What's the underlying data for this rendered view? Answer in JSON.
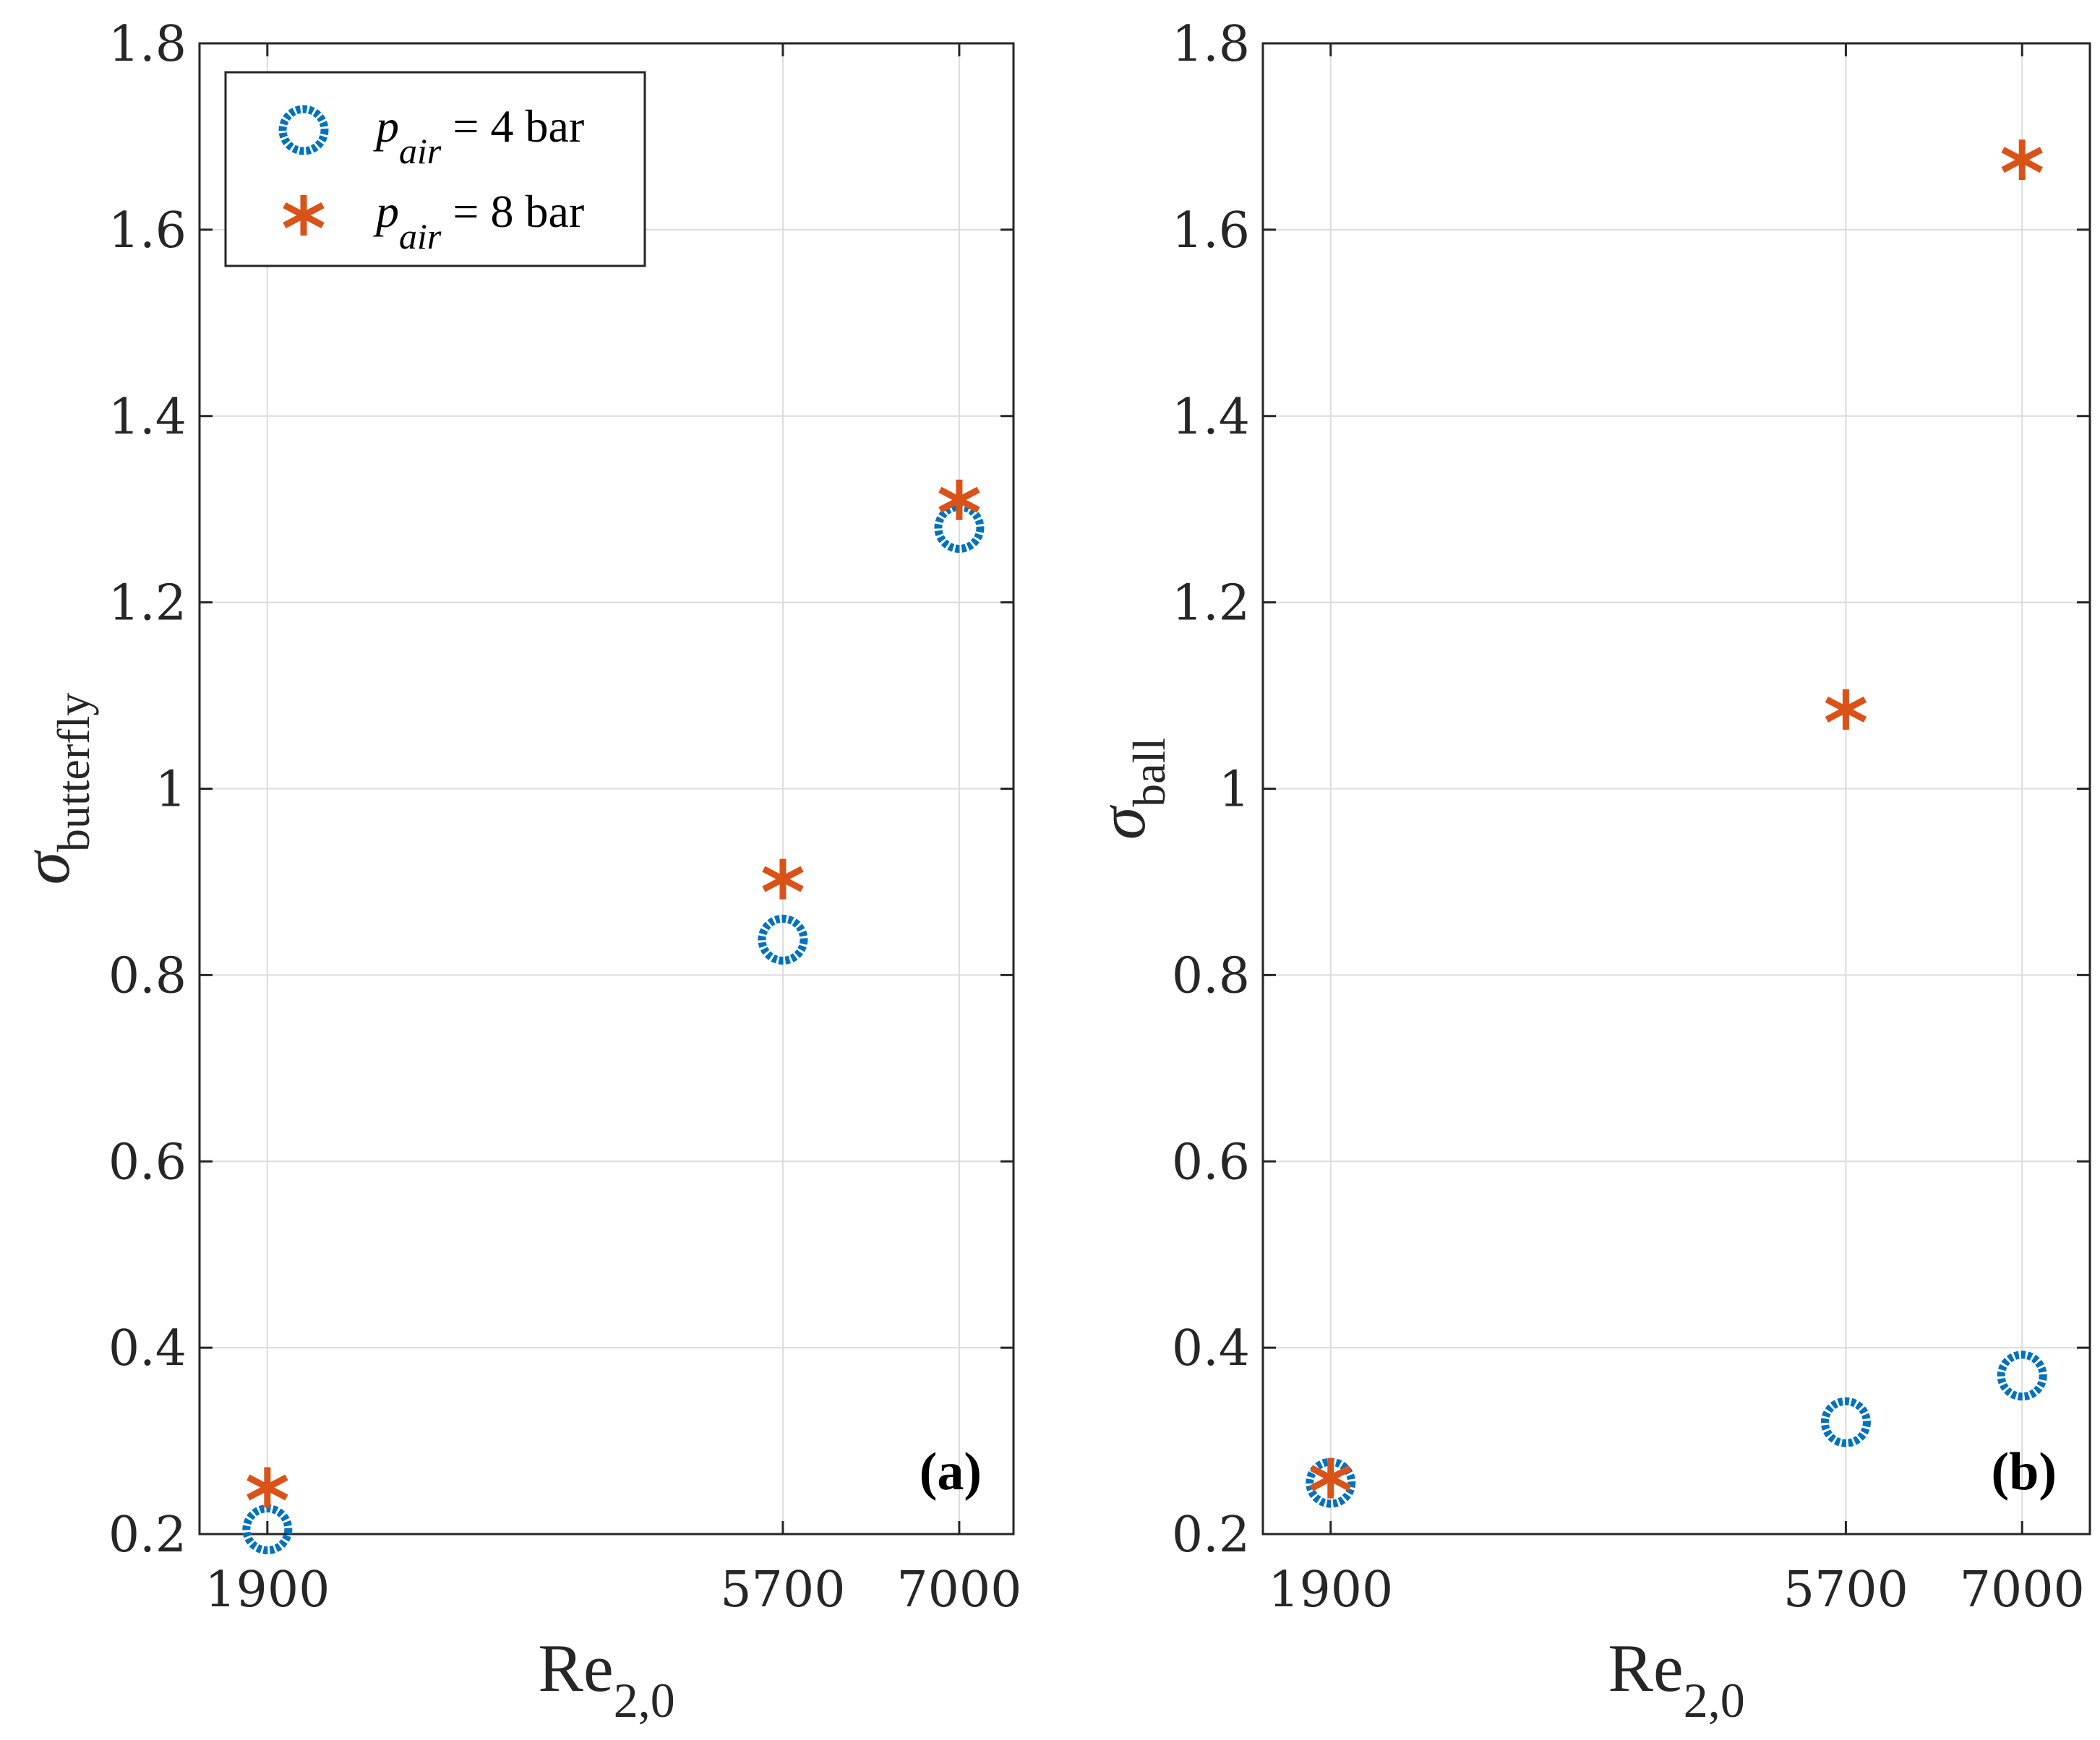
{
  "colors": {
    "series_4bar": "#0072BD",
    "series_8bar": "#D95319",
    "axes": "#262626",
    "grid": "#dcdcdc"
  },
  "legend": {
    "items": [
      {
        "symbol": "p",
        "subscript": "air",
        "suffix": " = 4 bar",
        "marker": "circle"
      },
      {
        "symbol": "p",
        "subscript": "air",
        "suffix": " = 8 bar",
        "marker": "asterisk"
      }
    ]
  },
  "chart_data": [
    {
      "type": "scatter",
      "panel_label": "(a)",
      "xlabel": {
        "main": "Re",
        "sub": "2,0"
      },
      "ylabel": {
        "main": "σ",
        "sub": "butterfly"
      },
      "xlim": [
        1400,
        7400
      ],
      "ylim": [
        0.2,
        1.8
      ],
      "xticks": [
        1900,
        5700,
        7000
      ],
      "yticks": [
        0.2,
        0.4,
        0.6,
        0.8,
        1,
        1.2,
        1.4,
        1.6,
        1.8
      ],
      "ytick_labels": [
        "0.2",
        "0.4",
        "0.6",
        "0.8",
        "1",
        "1.2",
        "1.4",
        "1.6",
        "1.8"
      ],
      "grid": true,
      "series": [
        {
          "name": "p_air = 4 bar",
          "marker": "circle",
          "x": [
            1900,
            5700,
            7000
          ],
          "y": [
            0.205,
            0.838,
            1.28
          ]
        },
        {
          "name": "p_air = 8 bar",
          "marker": "asterisk",
          "x": [
            1900,
            5700,
            7000
          ],
          "y": [
            0.25,
            0.903,
            1.31
          ]
        }
      ]
    },
    {
      "type": "scatter",
      "panel_label": "(b)",
      "xlabel": {
        "main": "Re",
        "sub": "2,0"
      },
      "ylabel": {
        "main": "σ",
        "sub": "ball"
      },
      "xlim": [
        1400,
        7500
      ],
      "ylim": [
        0.2,
        1.8
      ],
      "xticks": [
        1900,
        5700,
        7000
      ],
      "yticks": [
        0.2,
        0.4,
        0.6,
        0.8,
        1,
        1.2,
        1.4,
        1.6,
        1.8
      ],
      "ytick_labels": [
        "0.2",
        "0.4",
        "0.6",
        "0.8",
        "1",
        "1.2",
        "1.4",
        "1.6",
        "1.8"
      ],
      "grid": true,
      "series": [
        {
          "name": "p_air = 4 bar",
          "marker": "circle",
          "x": [
            1900,
            5700,
            7000
          ],
          "y": [
            0.255,
            0.32,
            0.37
          ]
        },
        {
          "name": "p_air = 8 bar",
          "marker": "asterisk",
          "x": [
            1900,
            5700,
            7000
          ],
          "y": [
            0.26,
            1.085,
            1.675
          ]
        }
      ]
    }
  ]
}
